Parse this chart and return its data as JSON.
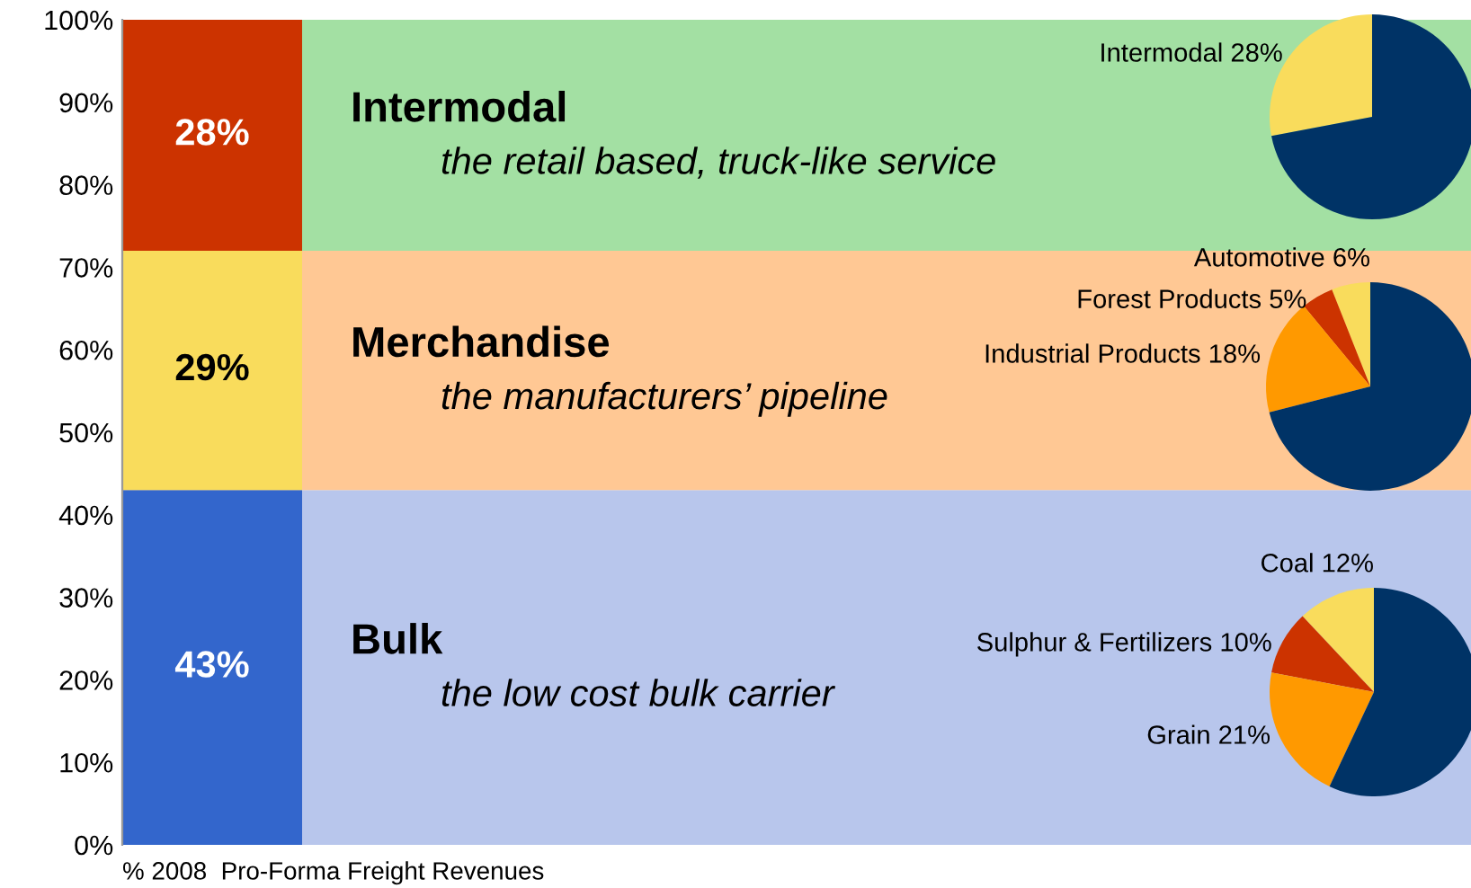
{
  "chart_data": [
    {
      "type": "bar",
      "stacked": true,
      "categories": [
        null
      ],
      "series": [
        {
          "name": "Bulk",
          "color": "#3366cc",
          "values": [
            43
          ],
          "value_labels": [
            "43%"
          ]
        },
        {
          "name": "Merchandise",
          "color": "#f9dc5c",
          "values": [
            29
          ],
          "value_labels": [
            "29%"
          ]
        },
        {
          "name": "Intermodal",
          "color": "#cc3300",
          "values": [
            28
          ],
          "value_labels": [
            "28%"
          ]
        }
      ],
      "bands": [
        {
          "axis": "y",
          "from": 0,
          "to": 43,
          "color": "#b8c6ec"
        },
        {
          "axis": "y",
          "from": 43,
          "to": 72,
          "color": "#ffc894"
        },
        {
          "axis": "y",
          "from": 72,
          "to": 100,
          "color": "#a3e0a3"
        }
      ],
      "ylim": [
        0,
        100
      ],
      "yticks": [
        {
          "value": 0,
          "label": "0%"
        },
        {
          "value": 10,
          "label": "10%"
        },
        {
          "value": 20,
          "label": "20%"
        },
        {
          "value": 30,
          "label": "30%"
        },
        {
          "value": 40,
          "label": "40%"
        },
        {
          "value": 50,
          "label": "50%"
        },
        {
          "value": 60,
          "label": "60%"
        },
        {
          "value": 70,
          "label": "70%"
        },
        {
          "value": 80,
          "label": "80%"
        },
        {
          "value": 90,
          "label": "90%"
        },
        {
          "value": 100,
          "label": "100%"
        }
      ],
      "annotations": [
        "the low cost bulk carrier",
        "the manufacturers’ pipeline",
        "the retail based, truck-like service",
        "% 2008  Pro-Forma Freight Revenues"
      ]
    },
    {
      "type": "pie",
      "categories": [
        "Intermodal 28%",
        null
      ],
      "values": [
        28,
        72
      ],
      "colors": [
        "#f9dc5c",
        "#003366"
      ]
    },
    {
      "type": "pie",
      "categories": [
        "Automotive 6%",
        "Forest Products 5%",
        "Industrial Products 18%",
        null
      ],
      "values": [
        6,
        5,
        18,
        71
      ],
      "colors": [
        "#f9dc5c",
        "#cc3300",
        "#ff9900",
        "#003366"
      ]
    },
    {
      "type": "pie",
      "categories": [
        "Coal 12%",
        "Sulphur & Fertilizers 10%",
        "Grain 21%",
        null
      ],
      "values": [
        12,
        10,
        21,
        57
      ],
      "colors": [
        "#f9dc5c",
        "#cc3300",
        "#ff9900",
        "#003366"
      ]
    }
  ]
}
